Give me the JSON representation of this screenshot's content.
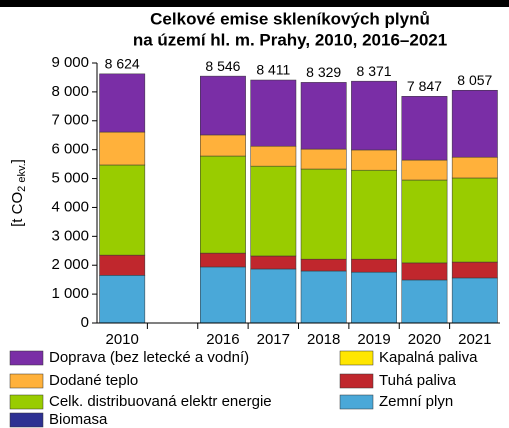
{
  "chart_data": {
    "type": "stacked_bar",
    "title": [
      "Celkové emise skleníkových plynů",
      "na území hl. m. Prahy, 2010, 2016–2021"
    ],
    "ylabel": {
      "main": "[t CO",
      "sub": "2 ekv.",
      "end": "]"
    },
    "categories": [
      "2010",
      null,
      "2016",
      "2017",
      "2018",
      "2019",
      "2020",
      "2021"
    ],
    "series": [
      {
        "name": "Doprava (bez letecké a vodní)",
        "color": "#7a2ea6",
        "values": [
          2014,
          null,
          2036,
          2291,
          2309,
          2381,
          2207,
          2317
        ]
      },
      {
        "name": "Dodané teplo",
        "color": "#ffb13b",
        "values": [
          1140,
          null,
          730,
          690,
          690,
          700,
          690,
          720
        ]
      },
      {
        "name": "Celk. distribuovaná elektr energie",
        "color": "#99cc00",
        "values": [
          3120,
          null,
          3360,
          3110,
          3120,
          3080,
          2870,
          2910
        ]
      },
      {
        "name": "Biomasa",
        "color": "#2e3192",
        "values": [
          0,
          null,
          0,
          0,
          0,
          0,
          0,
          0
        ]
      },
      {
        "name": "Kapalná paliva",
        "color": "#ffe600",
        "values": [
          0,
          null,
          0,
          0,
          0,
          0,
          0,
          0
        ]
      },
      {
        "name": "Tuhá paliva",
        "color": "#c0272d",
        "values": [
          700,
          null,
          480,
          450,
          410,
          450,
          590,
          550
        ]
      },
      {
        "name": "Zemní plyn",
        "color": "#4aa8d8",
        "values": [
          1650,
          null,
          1940,
          1870,
          1800,
          1760,
          1490,
          1560
        ]
      }
    ],
    "totals": [
      8624,
      null,
      8546,
      8411,
      8329,
      8371,
      7847,
      8057
    ],
    "totals_labels": [
      "8 624",
      null,
      "8 546",
      "8 411",
      "8 329",
      "8 371",
      "7 847",
      "8 057"
    ],
    "ylim": [
      0,
      9000
    ],
    "yticks": [
      0,
      {
        "value": 1000,
        "label": "1 000"
      },
      {
        "value": 2000,
        "label": "2 000"
      },
      {
        "value": 3000,
        "label": "3 000"
      },
      {
        "value": 4000,
        "label": "4 000"
      },
      {
        "value": 5000,
        "label": "5 000"
      },
      {
        "value": 6000,
        "label": "6 000"
      },
      {
        "value": 7000,
        "label": "7 000"
      },
      {
        "value": 8000,
        "label": "8 000"
      },
      {
        "value": 9000,
        "label": "9 000"
      }
    ],
    "grid": false
  }
}
